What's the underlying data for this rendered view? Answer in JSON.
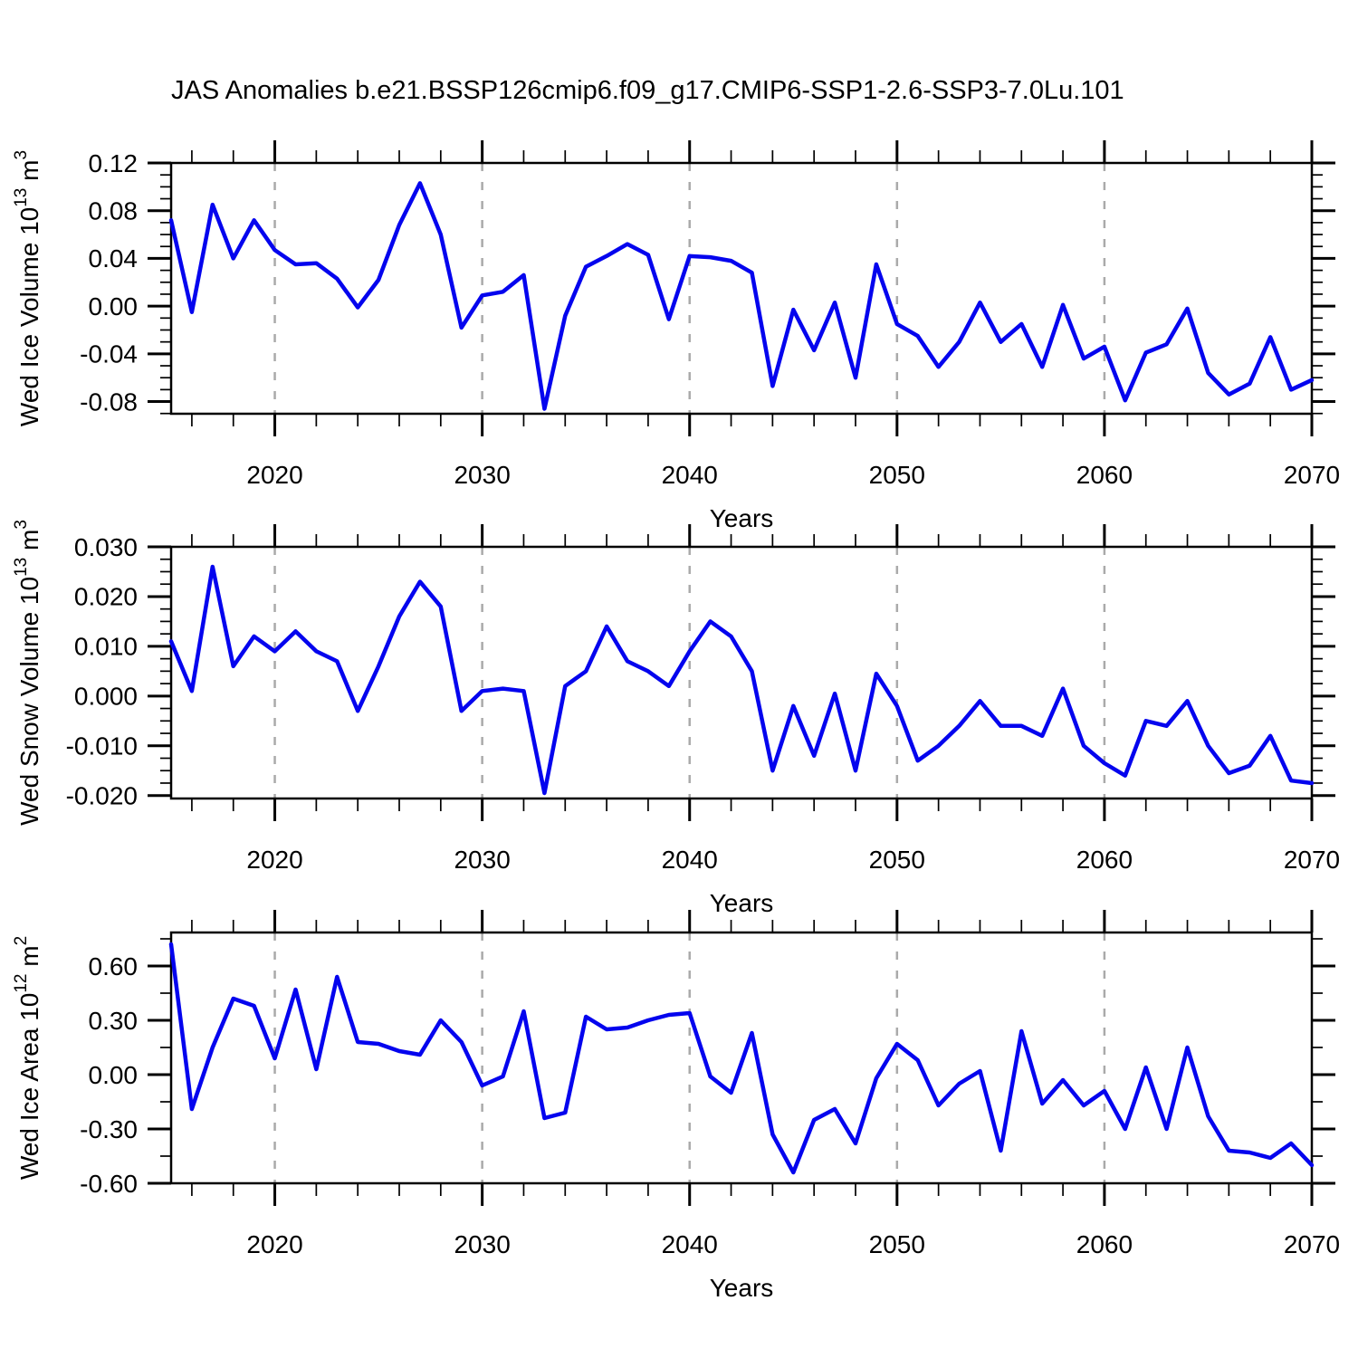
{
  "chart_data": {
    "type": "line",
    "title": "JAS Anomalies b.e21.BSSP126cmip6.f09_g17.CMIP6-SSP1-2.6-SSP3-7.0Lu.101",
    "xlabel": "Years",
    "x_range": [
      2015,
      2070
    ],
    "x_major_ticks": [
      2020,
      2030,
      2040,
      2050,
      2060,
      2070
    ],
    "x_minor_step_years": 2,
    "grid_years": [
      2020,
      2030,
      2040,
      2050,
      2060
    ],
    "grid_style": "dashed",
    "line_color": "#0404ee",
    "grid_color": "#aaaaaa",
    "axis_color": "#000000",
    "background_color": "#ffffff",
    "years": [
      2015,
      2016,
      2017,
      2018,
      2019,
      2020,
      2021,
      2022,
      2023,
      2024,
      2025,
      2026,
      2027,
      2028,
      2029,
      2030,
      2031,
      2032,
      2033,
      2034,
      2035,
      2036,
      2037,
      2038,
      2039,
      2040,
      2041,
      2042,
      2043,
      2044,
      2045,
      2046,
      2047,
      2048,
      2049,
      2050,
      2051,
      2052,
      2053,
      2054,
      2055,
      2056,
      2057,
      2058,
      2059,
      2060,
      2061,
      2062,
      2063,
      2064,
      2065,
      2066,
      2067,
      2068,
      2069,
      2070
    ],
    "panels": [
      {
        "ylabel": "Wed Ice Volume 10^13 m^3",
        "ylabel_parts": [
          {
            "t": "Wed Ice Volume 10"
          },
          {
            "t": "13",
            "sup": true
          },
          {
            "t": " m"
          },
          {
            "t": "3",
            "sup": true
          }
        ],
        "ylim": [
          -0.0902,
          0.12
        ],
        "y_major_ticks": [
          0.12,
          0.08,
          0.04,
          0.0,
          -0.04,
          -0.08
        ],
        "y_minor_step": 0.01,
        "y_tick_decimals": 2,
        "values": [
          0.072,
          -0.005,
          0.085,
          0.04,
          0.072,
          0.047,
          0.035,
          0.036,
          0.023,
          -0.001,
          0.022,
          0.068,
          0.103,
          0.06,
          -0.018,
          0.009,
          0.012,
          0.026,
          -0.086,
          -0.008,
          0.033,
          0.042,
          0.052,
          0.043,
          -0.011,
          0.042,
          0.041,
          0.038,
          0.028,
          -0.067,
          -0.003,
          -0.037,
          0.003,
          -0.06,
          0.035,
          -0.015,
          -0.025,
          -0.051,
          -0.03,
          0.003,
          -0.03,
          -0.015,
          -0.051,
          0.001,
          -0.044,
          -0.034,
          -0.079,
          -0.039,
          -0.032,
          -0.002,
          -0.056,
          -0.074,
          -0.065,
          -0.026,
          -0.07,
          -0.062
        ]
      },
      {
        "ylabel": "Wed Snow Volume 10^13 m^3",
        "ylabel_parts": [
          {
            "t": "Wed Snow Volume 10"
          },
          {
            "t": "13",
            "sup": true
          },
          {
            "t": " m"
          },
          {
            "t": "3",
            "sup": true
          }
        ],
        "ylim": [
          -0.0206,
          0.03
        ],
        "y_major_ticks": [
          0.03,
          0.02,
          0.01,
          0.0,
          -0.01,
          -0.02
        ],
        "y_minor_step": 0.0025,
        "y_tick_decimals": 3,
        "values": [
          0.011,
          0.001,
          0.026,
          0.006,
          0.012,
          0.009,
          0.013,
          0.009,
          0.007,
          -0.003,
          0.006,
          0.016,
          0.023,
          0.018,
          -0.003,
          0.001,
          0.0015,
          0.001,
          -0.0195,
          0.002,
          0.005,
          0.014,
          0.007,
          0.005,
          0.002,
          0.009,
          0.015,
          0.012,
          0.005,
          -0.015,
          -0.002,
          -0.012,
          0.0005,
          -0.015,
          0.0045,
          -0.002,
          -0.013,
          -0.01,
          -0.006,
          -0.001,
          -0.006,
          -0.006,
          -0.008,
          0.0015,
          -0.01,
          -0.0135,
          -0.016,
          -0.005,
          -0.006,
          -0.001,
          -0.01,
          -0.0155,
          -0.014,
          -0.008,
          -0.017,
          -0.0175
        ]
      },
      {
        "ylabel": "Wed Ice Area 10^12 m^2",
        "ylabel_parts": [
          {
            "t": "Wed Ice Area 10"
          },
          {
            "t": "12",
            "sup": true
          },
          {
            "t": " m"
          },
          {
            "t": "2",
            "sup": true
          }
        ],
        "ylim": [
          -0.6,
          0.785
        ],
        "y_major_ticks": [
          0.6,
          0.3,
          0.0,
          -0.3,
          -0.6
        ],
        "y_minor_step": 0.15,
        "y_tick_decimals": 2,
        "values": [
          0.72,
          -0.19,
          0.15,
          0.42,
          0.38,
          0.09,
          0.47,
          0.03,
          0.54,
          0.18,
          0.17,
          0.13,
          0.11,
          0.3,
          0.18,
          -0.06,
          -0.01,
          0.35,
          -0.24,
          -0.21,
          0.32,
          0.25,
          0.26,
          0.3,
          0.33,
          0.34,
          -0.01,
          -0.1,
          0.23,
          -0.33,
          -0.54,
          -0.25,
          -0.19,
          -0.38,
          -0.02,
          0.17,
          0.08,
          -0.17,
          -0.05,
          0.02,
          -0.42,
          0.24,
          -0.16,
          -0.03,
          -0.17,
          -0.09,
          -0.3,
          0.04,
          -0.3,
          0.15,
          -0.23,
          -0.42,
          -0.43,
          -0.46,
          -0.38,
          -0.5
        ]
      }
    ]
  }
}
